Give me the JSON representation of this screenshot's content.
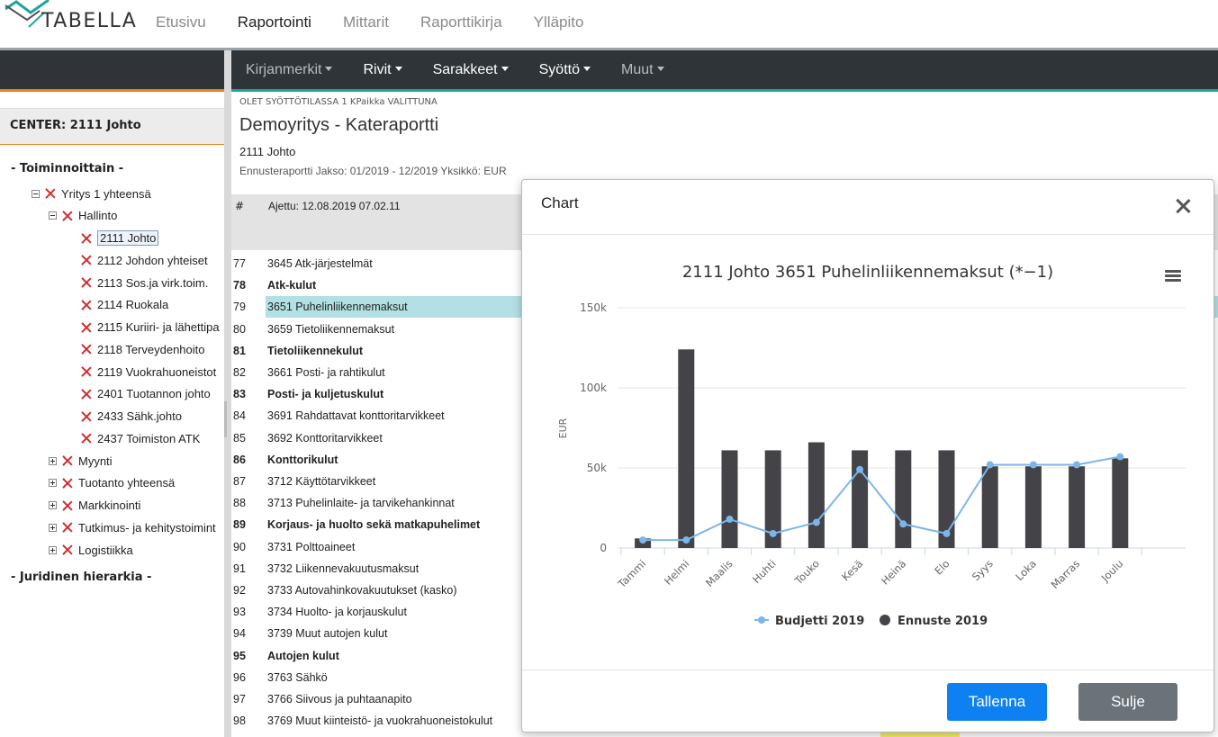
{
  "app": {
    "logo_text": "TABELLA",
    "nav": [
      "Etusivu",
      "Raportointi",
      "Mittarit",
      "Raporttikirja",
      "Ylläpito"
    ],
    "active_nav": 1
  },
  "toolbar": {
    "menus": [
      "Kirjanmerkit",
      "Rivit",
      "Sarakkeet",
      "Syöttö",
      "Muut"
    ]
  },
  "sidebar": {
    "center_label": "CENTER: 2111 Johto",
    "section1": "- Toiminnoittain -",
    "section2": "- Juridinen hierarkia -",
    "tree": [
      {
        "label": "Yritys 1 yhteensä",
        "level": 1,
        "toggle": "minus"
      },
      {
        "label": "Hallinto",
        "level": 2,
        "toggle": "minus"
      },
      {
        "label": "2111 Johto",
        "level": 3,
        "toggle": "",
        "selected": true
      },
      {
        "label": "2112 Johdon yhteiset",
        "level": 3,
        "toggle": ""
      },
      {
        "label": "2113 Sos.ja virk.toim.",
        "level": 3,
        "toggle": ""
      },
      {
        "label": "2114 Ruokala",
        "level": 3,
        "toggle": ""
      },
      {
        "label": "2115 Kuriiri- ja lähettipa",
        "level": 3,
        "toggle": ""
      },
      {
        "label": "2118 Terveydenhoito",
        "level": 3,
        "toggle": ""
      },
      {
        "label": "2119 Vuokrahuoneistot",
        "level": 3,
        "toggle": ""
      },
      {
        "label": "2401 Tuotannon johto",
        "level": 3,
        "toggle": ""
      },
      {
        "label": "2433 Sähk.johto",
        "level": 3,
        "toggle": ""
      },
      {
        "label": "2437 Toimiston ATK",
        "level": 3,
        "toggle": ""
      },
      {
        "label": "Myynti",
        "level": 2,
        "toggle": "plus"
      },
      {
        "label": "Tuotanto yhteensä",
        "level": 2,
        "toggle": "plus"
      },
      {
        "label": "Markkinointi",
        "level": 2,
        "toggle": "plus"
      },
      {
        "label": "Tutkimus- ja kehitystoimint",
        "level": 2,
        "toggle": "plus"
      },
      {
        "label": "Logistiikka",
        "level": 2,
        "toggle": "plus"
      }
    ]
  },
  "report": {
    "mode_text": "OLET SYÖTTÖTILASSA 1 KPaikka VALITTUNA",
    "title": "Demoyritys - Kateraportti",
    "subtitle": "2111 Johto",
    "meta": "Ennusteraportti Jakso: 01/2019 - 12/2019 Yksikkö: EUR",
    "col_num": "#",
    "col_run": "Ajettu: 12.08.2019 07.02.11",
    "rows": [
      {
        "num": "77",
        "name": "3645 Atk-järjestelmät",
        "bold": false
      },
      {
        "num": "78",
        "name": "Atk-kulut",
        "bold": true
      },
      {
        "num": "79",
        "name": "3651 Puhelinliikennemaksut",
        "bold": false,
        "highlight": true
      },
      {
        "num": "80",
        "name": "3659 Tietoliikennemaksut",
        "bold": false
      },
      {
        "num": "81",
        "name": "Tietoliikennekulut",
        "bold": true
      },
      {
        "num": "82",
        "name": "3661 Posti- ja rahtikulut",
        "bold": false
      },
      {
        "num": "83",
        "name": "Posti- ja kuljetuskulut",
        "bold": true
      },
      {
        "num": "84",
        "name": "3691 Rahdattavat konttoritarvikkeet",
        "bold": false
      },
      {
        "num": "85",
        "name": "3692 Konttoritarvikkeet",
        "bold": false
      },
      {
        "num": "86",
        "name": "Konttorikulut",
        "bold": true
      },
      {
        "num": "87",
        "name": "3712 Käyttötarvikkeet",
        "bold": false
      },
      {
        "num": "88",
        "name": "3713 Puhelinlaite- ja tarvikehankinnat",
        "bold": false
      },
      {
        "num": "89",
        "name": "Korjaus- ja huolto sekä matkapuhelimet",
        "bold": true
      },
      {
        "num": "90",
        "name": "3731 Polttoaineet",
        "bold": false
      },
      {
        "num": "91",
        "name": "3732 Liikennevakuutusmaksut",
        "bold": false
      },
      {
        "num": "92",
        "name": "3733 Autovahinkovakuutukset (kasko)",
        "bold": false
      },
      {
        "num": "93",
        "name": "3734 Huolto- ja korjauskulut",
        "bold": false
      },
      {
        "num": "94",
        "name": "3739 Muut autojen kulut",
        "bold": false
      },
      {
        "num": "95",
        "name": "Autojen kulut",
        "bold": true
      },
      {
        "num": "96",
        "name": "3763 Sähkö",
        "bold": false
      },
      {
        "num": "97",
        "name": "3766 Siivous ja puhtaanapito",
        "bold": false
      },
      {
        "num": "98",
        "name": "3769 Muut kiinteistö- ja vuokrahuoneistokulut",
        "bold": false
      }
    ]
  },
  "modal": {
    "title": "Chart",
    "save_label": "Tallenna",
    "close_label": "Sulje"
  },
  "chart_data": {
    "type": "bar",
    "title": "2111 Johto 3651 Puhelinliikennemaksut (*−1)",
    "ylabel": "EUR",
    "xlabel": "",
    "ylim": [
      0,
      150000
    ],
    "ytick_labels": [
      "0",
      "50k",
      "100k",
      "150k"
    ],
    "yticks": [
      0,
      50000,
      100000,
      150000
    ],
    "grid": true,
    "legend": "bottom",
    "categories": [
      "Tammi",
      "Helmi",
      "Maalis",
      "Huhti",
      "Touko",
      "Kesä",
      "Heinä",
      "Elo",
      "Syys",
      "Loka",
      "Marras",
      "Joulu"
    ],
    "series": [
      {
        "name": "Budjetti 2019",
        "kind": "line",
        "color": "#7cb5ec",
        "values": [
          5000,
          5000,
          18000,
          9000,
          16000,
          49000,
          15000,
          9000,
          52000,
          52000,
          52000,
          57000
        ]
      },
      {
        "name": "Ennuste 2019",
        "kind": "bar",
        "color": "#434348",
        "values": [
          6000,
          124000,
          61000,
          61000,
          66000,
          61000,
          61000,
          61000,
          51000,
          51000,
          51000,
          56000
        ]
      }
    ]
  }
}
